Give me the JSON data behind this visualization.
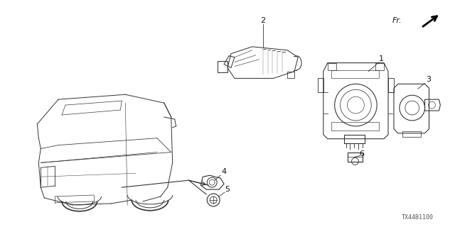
{
  "bg_color": "#ffffff",
  "fig_width": 6.4,
  "fig_height": 3.2,
  "dpi": 100,
  "line_color": "#2a2a2a",
  "diagram_code": "TX44B1100"
}
